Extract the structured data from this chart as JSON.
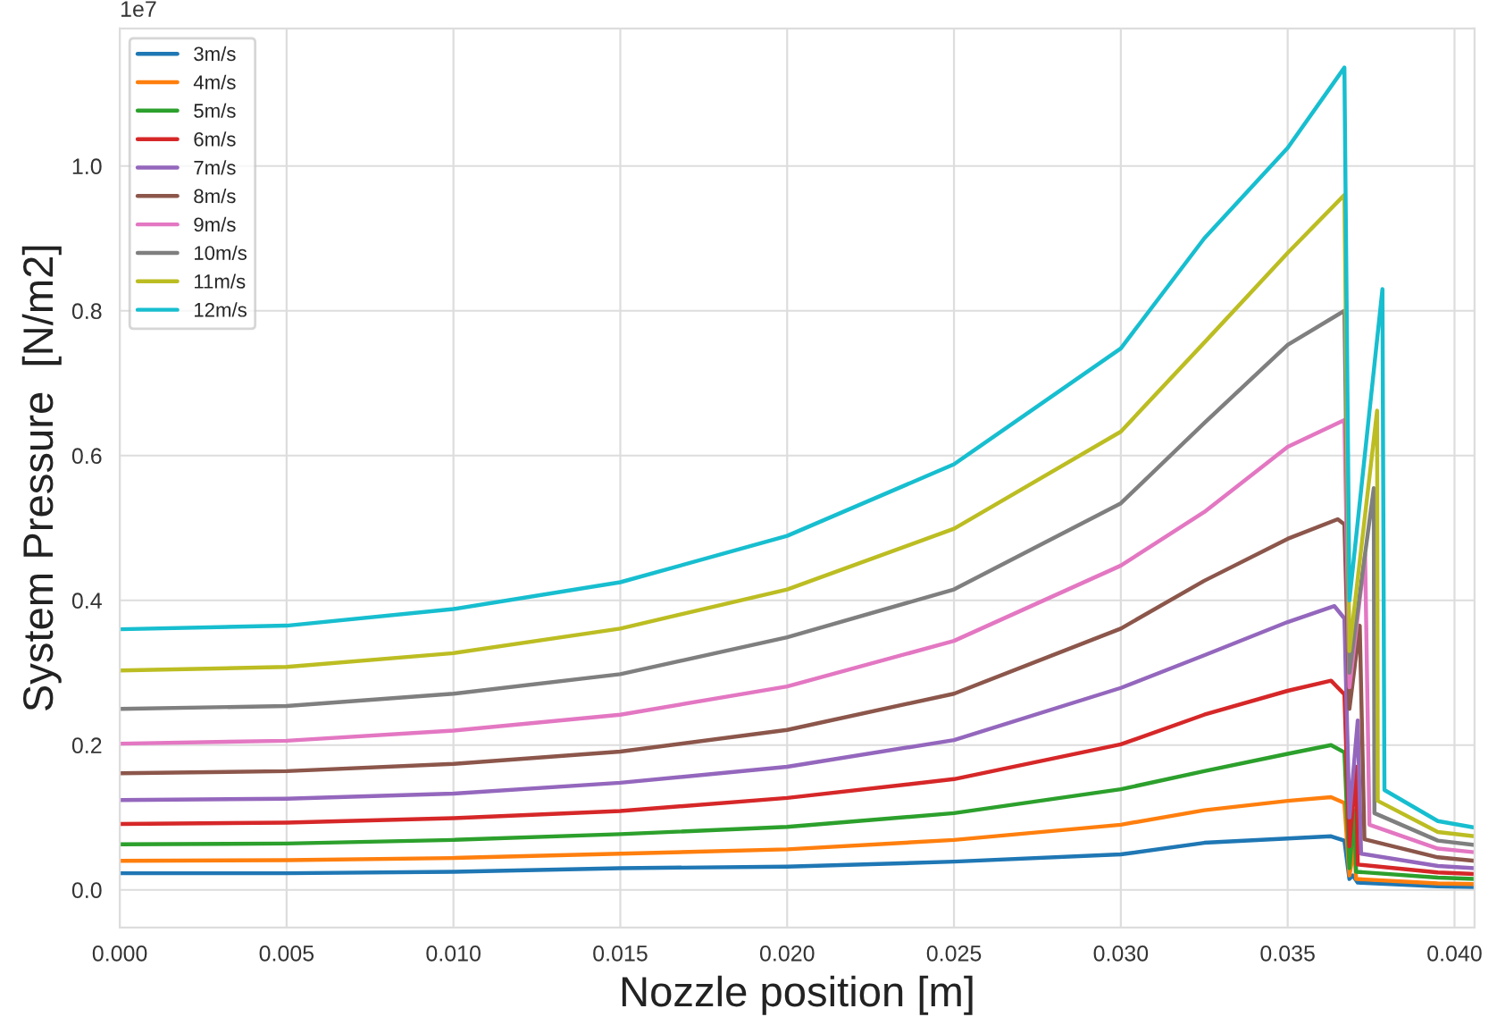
{
  "chart_data": {
    "type": "line",
    "xlabel": "Nozzle position [m]",
    "ylabel": "System Pressure  [N/m2]",
    "annotations": [
      "1e7"
    ],
    "xlim": [
      0,
      0.0406
    ],
    "xticks": [
      {
        "value": 0,
        "label": "0.000"
      },
      {
        "value": 0.005,
        "label": "0.005"
      },
      {
        "value": 0.01,
        "label": "0.010"
      },
      {
        "value": 0.015,
        "label": "0.015"
      },
      {
        "value": 0.02,
        "label": "0.020"
      },
      {
        "value": 0.025,
        "label": "0.025"
      },
      {
        "value": 0.03,
        "label": "0.030"
      },
      {
        "value": 0.035,
        "label": "0.035"
      },
      {
        "value": 0.04,
        "label": "0.040"
      }
    ],
    "ylim": [
      -0.052,
      1.19
    ],
    "yticks": [
      {
        "value": 0,
        "label": "0.0"
      },
      0.2,
      0.4,
      0.6,
      0.8,
      {
        "value": 1,
        "label": "1.0"
      }
    ],
    "grid": true,
    "legend": "top left",
    "marker": "none",
    "line_style": "solid",
    "series": [
      {
        "name": "3m/s",
        "color": "#1f77b4",
        "x": [
          0,
          0.005,
          0.01,
          0.015,
          0.02,
          0.025,
          0.03,
          0.0325,
          0.035,
          0.0363,
          0.0367,
          0.03685,
          0.03695,
          0.0371,
          0.0395,
          0.0406
        ],
        "values": [
          0.023,
          0.023,
          0.025,
          0.03,
          0.032,
          0.039,
          0.049,
          0.065,
          0.071,
          0.074,
          0.068,
          0.015,
          0.02,
          0.01,
          0.005,
          0.004
        ]
      },
      {
        "name": "4m/s",
        "color": "#ff7f0e",
        "x": [
          0,
          0.005,
          0.01,
          0.015,
          0.02,
          0.025,
          0.03,
          0.0325,
          0.035,
          0.0363,
          0.0367,
          0.03685,
          0.037,
          0.03705,
          0.0395,
          0.0406
        ],
        "values": [
          0.04,
          0.041,
          0.044,
          0.05,
          0.056,
          0.069,
          0.09,
          0.11,
          0.123,
          0.128,
          0.12,
          0.02,
          0.06,
          0.015,
          0.009,
          0.008
        ]
      },
      {
        "name": "5m/s",
        "color": "#2ca02c",
        "x": [
          0,
          0.005,
          0.01,
          0.015,
          0.02,
          0.025,
          0.03,
          0.0325,
          0.035,
          0.0363,
          0.0367,
          0.03685,
          0.037,
          0.03705,
          0.0395,
          0.0406
        ],
        "values": [
          0.063,
          0.064,
          0.069,
          0.077,
          0.087,
          0.106,
          0.139,
          0.164,
          0.188,
          0.2,
          0.19,
          0.03,
          0.11,
          0.025,
          0.017,
          0.015
        ]
      },
      {
        "name": "6m/s",
        "color": "#d62728",
        "x": [
          0,
          0.005,
          0.01,
          0.015,
          0.02,
          0.025,
          0.03,
          0.0325,
          0.035,
          0.0363,
          0.0367,
          0.03685,
          0.03705,
          0.0371,
          0.0395,
          0.0406
        ],
        "values": [
          0.091,
          0.093,
          0.099,
          0.109,
          0.127,
          0.153,
          0.201,
          0.242,
          0.275,
          0.289,
          0.27,
          0.06,
          0.17,
          0.035,
          0.024,
          0.022
        ]
      },
      {
        "name": "7m/s",
        "color": "#9467bd",
        "x": [
          0,
          0.005,
          0.01,
          0.015,
          0.02,
          0.025,
          0.03,
          0.0325,
          0.035,
          0.0364,
          0.0367,
          0.03685,
          0.0371,
          0.0372,
          0.0395,
          0.0406
        ],
        "values": [
          0.124,
          0.126,
          0.133,
          0.148,
          0.17,
          0.207,
          0.279,
          0.324,
          0.37,
          0.392,
          0.375,
          0.1,
          0.234,
          0.05,
          0.033,
          0.03
        ]
      },
      {
        "name": "8m/s",
        "color": "#8c564b",
        "x": [
          0,
          0.005,
          0.01,
          0.015,
          0.02,
          0.025,
          0.03,
          0.0325,
          0.035,
          0.0365,
          0.0367,
          0.03685,
          0.03716,
          0.0373,
          0.0395,
          0.0406
        ],
        "values": [
          0.161,
          0.164,
          0.174,
          0.191,
          0.221,
          0.271,
          0.361,
          0.427,
          0.485,
          0.512,
          0.505,
          0.25,
          0.365,
          0.07,
          0.045,
          0.04
        ]
      },
      {
        "name": "9m/s",
        "color": "#e377c2",
        "x": [
          0,
          0.005,
          0.01,
          0.015,
          0.02,
          0.025,
          0.03,
          0.0325,
          0.035,
          0.0367,
          0.03685,
          0.03732,
          0.03745,
          0.0395,
          0.0406
        ],
        "values": [
          0.202,
          0.206,
          0.22,
          0.242,
          0.281,
          0.344,
          0.448,
          0.522,
          0.612,
          0.649,
          0.28,
          0.464,
          0.09,
          0.057,
          0.052
        ]
      },
      {
        "name": "10m/s",
        "color": "#7f7f7f",
        "x": [
          0,
          0.005,
          0.01,
          0.015,
          0.02,
          0.025,
          0.03,
          0.0325,
          0.035,
          0.0367,
          0.03685,
          0.03758,
          0.0376,
          0.0395,
          0.0406
        ],
        "values": [
          0.25,
          0.254,
          0.271,
          0.298,
          0.349,
          0.415,
          0.534,
          0.645,
          0.753,
          0.8,
          0.3,
          0.555,
          0.106,
          0.068,
          0.062
        ]
      },
      {
        "name": "11m/s",
        "color": "#bcbd22",
        "x": [
          0,
          0.005,
          0.01,
          0.015,
          0.02,
          0.025,
          0.03,
          0.0325,
          0.035,
          0.0367,
          0.03685,
          0.03768,
          0.0377,
          0.0395,
          0.0406
        ],
        "values": [
          0.303,
          0.308,
          0.327,
          0.361,
          0.415,
          0.499,
          0.633,
          0.756,
          0.88,
          0.96,
          0.33,
          0.662,
          0.123,
          0.08,
          0.074
        ]
      },
      {
        "name": "12m/s",
        "color": "#17becf",
        "x": [
          0,
          0.005,
          0.01,
          0.015,
          0.02,
          0.025,
          0.03,
          0.0325,
          0.035,
          0.0367,
          0.03685,
          0.03784,
          0.0379,
          0.0395,
          0.0406
        ],
        "values": [
          0.36,
          0.365,
          0.388,
          0.425,
          0.489,
          0.588,
          0.748,
          0.9,
          1.025,
          1.136,
          0.4,
          0.83,
          0.138,
          0.095,
          0.086
        ]
      }
    ]
  }
}
